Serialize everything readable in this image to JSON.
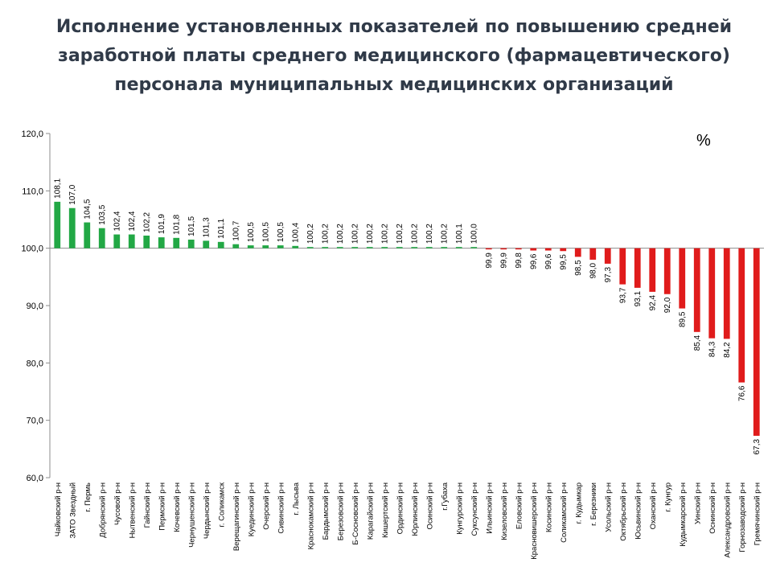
{
  "chart_data": {
    "type": "bar",
    "title": "Исполнение установленных показателей по повышению средней заработной платы среднего медицинского (фармацевтического) персонала муниципальных медицинских организаций",
    "unit": "%",
    "baseline": 100,
    "ylim": [
      60,
      120
    ],
    "yticks": [
      "60,0",
      "70,0",
      "80,0",
      "90,0",
      "100,0",
      "110,0",
      "120,0"
    ],
    "grid": false,
    "legend": "none",
    "colors": {
      "above": "#22a845",
      "below": "#e01b1b"
    },
    "categories": [
      "Чайковский р-н",
      "ЗАТО Звездный",
      "г. Пермь",
      "Добрянский р-н",
      "Чусовой р-н",
      "Нытвенский р-н",
      "Гайнский р-н",
      "Пермский р-н",
      "Кочевский р-н",
      "Чернушенский р-н",
      "Чердынский р-н",
      "г. Соликамск",
      "Верещагинский р-н",
      "Куединский р-н",
      "Очерский р-н",
      "Сивинский р-н",
      "г. Лысьва",
      "Краснокамский р-н",
      "Бардымский р-н",
      "Березовский р-н",
      "Б-Сосновский р-н",
      "Карагайский р-н",
      "Кишертский р-н",
      "Ординский р-н",
      "Юрлинский р-н",
      "Осинский р-н",
      "г.Губаха",
      "Кунгурский р-н",
      "Суксунский р-н",
      "Ильинский р-н",
      "Кизеловский р-н",
      "Еловский р-н",
      "Красновишерский р-н",
      "Косинский р-н",
      "Соликамский р-н",
      "г. Кудымкар",
      "г. Березники",
      "Усольский р-н",
      "Октябрьский р-н",
      "Юсьвинский р-н",
      "Оханский р-н",
      "г. Кунгур",
      "Кудымкарский р-н",
      "Уинский р-н",
      "Оснинский р-н",
      "Александровский р-н",
      "Горнозаводский р-н",
      "Гремячинский р-н"
    ],
    "values": [
      108.1,
      107.0,
      104.5,
      103.5,
      102.4,
      102.4,
      102.2,
      101.9,
      101.8,
      101.5,
      101.3,
      101.1,
      100.7,
      100.5,
      100.5,
      100.5,
      100.4,
      100.2,
      100.2,
      100.2,
      100.2,
      100.2,
      100.2,
      100.2,
      100.2,
      100.2,
      100.2,
      100.1,
      100.0,
      99.9,
      99.9,
      99.8,
      99.6,
      99.6,
      99.5,
      98.5,
      98.0,
      97.3,
      93.7,
      93.1,
      92.4,
      92.0,
      89.5,
      85.4,
      84.3,
      84.2,
      76.6,
      67.3
    ],
    "value_labels": [
      "108,1",
      "107,0",
      "104,5",
      "103,5",
      "102,4",
      "102,4",
      "102,2",
      "101,9",
      "101,8",
      "101,5",
      "101,3",
      "101,1",
      "100,7",
      "100,5",
      "100,5",
      "100,5",
      "100,4",
      "100,2",
      "100,2",
      "100,2",
      "100,2",
      "100,2",
      "100,2",
      "100,2",
      "100,2",
      "100,2",
      "100,2",
      "100,1",
      "100,0",
      "99,9",
      "99,9",
      "99,8",
      "99,6",
      "99,6",
      "99,5",
      "98,5",
      "98,0",
      "97,3",
      "93,7",
      "93,1",
      "92,4",
      "92,0",
      "89,5",
      "85,4",
      "84,3",
      "84,2",
      "76,6",
      "67,3"
    ]
  }
}
